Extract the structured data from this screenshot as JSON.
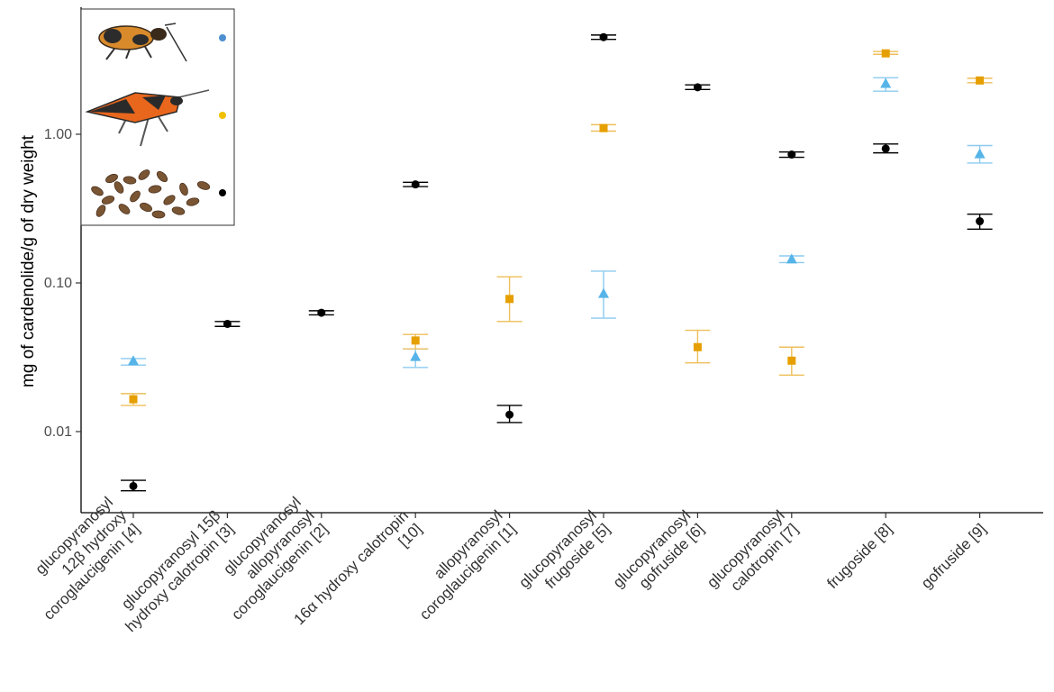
{
  "chart_data": {
    "type": "scatter",
    "title": "",
    "xlabel": "",
    "ylabel": "mg of cardenolide/g of dry weight",
    "yscale": "log",
    "ylim": [
      0.003,
      8
    ],
    "yticks": [
      {
        "value": 0.01,
        "label": "0.01"
      },
      {
        "value": 0.1,
        "label": "0.10"
      },
      {
        "value": 1,
        "label": "1.00"
      }
    ],
    "categories": [
      [
        "glucopyranosyl",
        "12β hydroxy",
        "coroglaucigenin [4]"
      ],
      [
        "glucopyranosyl 15β",
        "hydroxy calotropin [3]"
      ],
      [
        "glucopyranosyl",
        "allopyranosyl",
        "coroglaucigenin [2]"
      ],
      [
        "16α hydroxy calotropin",
        "[10]"
      ],
      [
        "allopyranosyl",
        "coroglaucigenin [1]"
      ],
      [
        "glucopyranosyl",
        "frugoside [5]"
      ],
      [
        "glucopyranosyl",
        "gofruside [6]"
      ],
      [
        "glucopyranosyl",
        "calotropin [7]"
      ],
      [
        "frugoside [8]"
      ],
      [
        "gofruside [9]"
      ]
    ],
    "series": [
      {
        "name": "adult bug",
        "marker": "triangle",
        "color": "#56B4E9",
        "points": [
          {
            "cat": 0,
            "y": 0.03,
            "lo": 0.028,
            "hi": 0.031
          },
          {
            "cat": 3,
            "y": 0.032,
            "lo": 0.027,
            "hi": 0.036
          },
          {
            "cat": 5,
            "y": 0.085,
            "lo": 0.058,
            "hi": 0.12
          },
          {
            "cat": 7,
            "y": 0.145,
            "lo": 0.137,
            "hi": 0.152
          },
          {
            "cat": 8,
            "y": 2.2,
            "lo": 1.95,
            "hi": 2.4
          },
          {
            "cat": 9,
            "y": 0.74,
            "lo": 0.64,
            "hi": 0.84
          }
        ]
      },
      {
        "name": "nymph",
        "marker": "square",
        "color": "#E69F00",
        "points": [
          {
            "cat": 0,
            "y": 0.0165,
            "lo": 0.015,
            "hi": 0.018
          },
          {
            "cat": 3,
            "y": 0.041,
            "lo": 0.036,
            "hi": 0.045
          },
          {
            "cat": 4,
            "y": 0.078,
            "lo": 0.055,
            "hi": 0.11
          },
          {
            "cat": 5,
            "y": 1.1,
            "lo": 1.05,
            "hi": 1.16
          },
          {
            "cat": 6,
            "y": 0.037,
            "lo": 0.029,
            "hi": 0.048
          },
          {
            "cat": 7,
            "y": 0.03,
            "lo": 0.024,
            "hi": 0.037
          },
          {
            "cat": 8,
            "y": 3.5,
            "lo": 3.45,
            "hi": 3.6
          },
          {
            "cat": 9,
            "y": 2.3,
            "lo": 2.22,
            "hi": 2.38
          }
        ]
      },
      {
        "name": "seeds",
        "marker": "circle",
        "color": "#000000",
        "points": [
          {
            "cat": 0,
            "y": 0.0043,
            "lo": 0.004,
            "hi": 0.0047
          },
          {
            "cat": 1,
            "y": 0.053,
            "lo": 0.051,
            "hi": 0.055
          },
          {
            "cat": 2,
            "y": 0.063,
            "lo": 0.061,
            "hi": 0.065
          },
          {
            "cat": 3,
            "y": 0.46,
            "lo": 0.445,
            "hi": 0.475
          },
          {
            "cat": 4,
            "y": 0.013,
            "lo": 0.0115,
            "hi": 0.015
          },
          {
            "cat": 5,
            "y": 4.5,
            "lo": 4.35,
            "hi": 4.65
          },
          {
            "cat": 6,
            "y": 2.07,
            "lo": 2.0,
            "hi": 2.15
          },
          {
            "cat": 7,
            "y": 0.73,
            "lo": 0.7,
            "hi": 0.76
          },
          {
            "cat": 8,
            "y": 0.8,
            "lo": 0.75,
            "hi": 0.86
          },
          {
            "cat": 9,
            "y": 0.26,
            "lo": 0.23,
            "hi": 0.29
          }
        ]
      }
    ],
    "legend_inset": {
      "placement": "top-left",
      "entries": [
        {
          "image": "adult-bug",
          "series": "adult bug",
          "color": "#4e8fd0"
        },
        {
          "image": "nymph",
          "series": "nymph",
          "color": "#F0C000"
        },
        {
          "image": "seeds",
          "series": "seeds",
          "color": "#000000"
        }
      ]
    }
  }
}
